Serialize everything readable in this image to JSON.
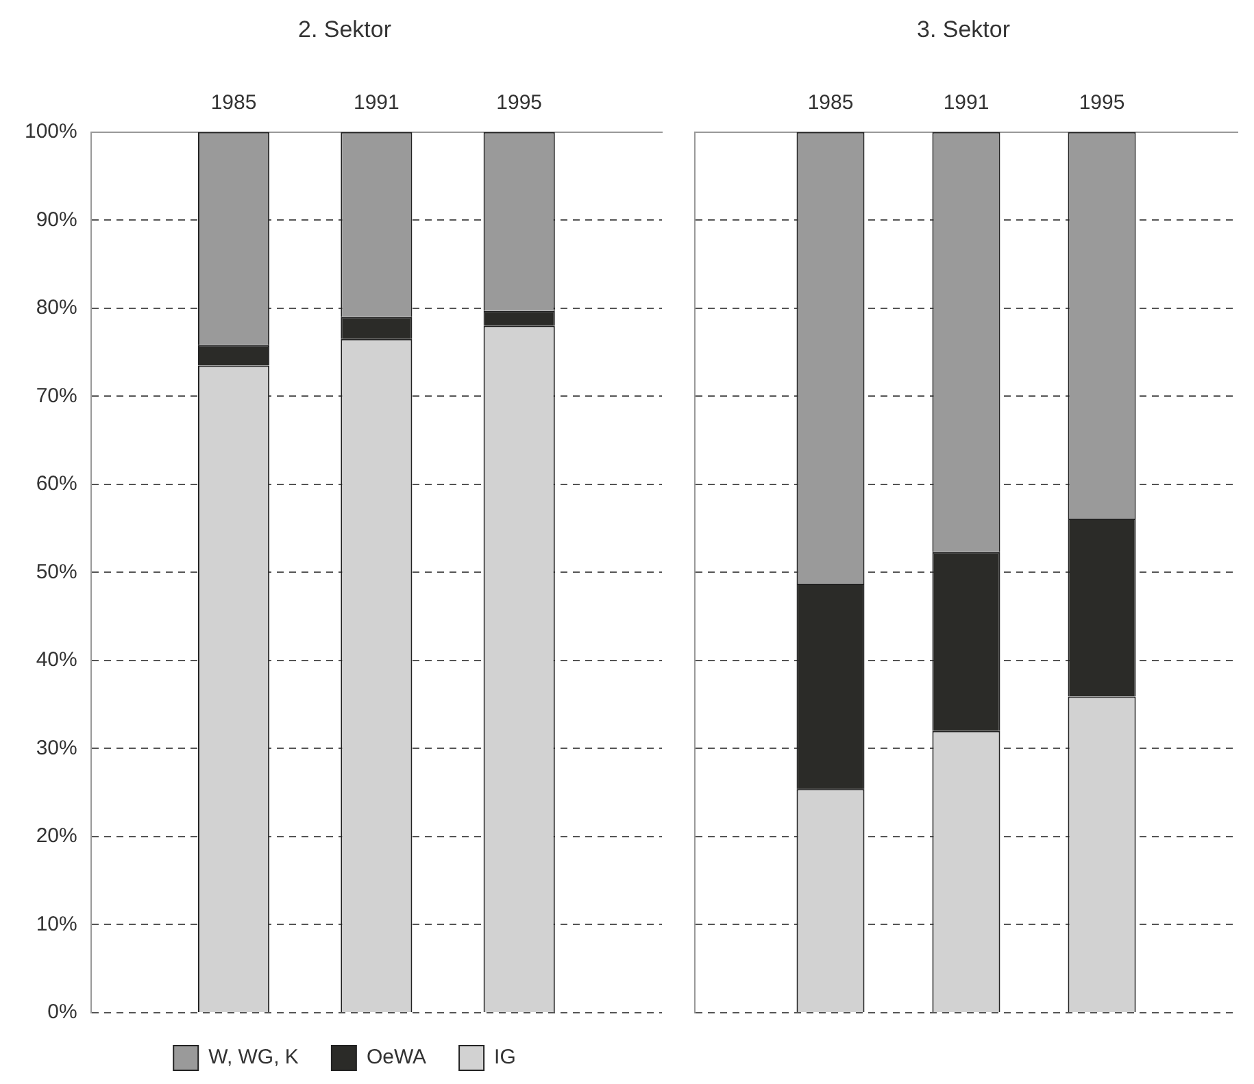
{
  "chart_data": [
    {
      "type": "bar",
      "stacked": true,
      "title": "2. Sektor",
      "categories": [
        null,
        "1985",
        "1991",
        "1995",
        null
      ],
      "series": [
        {
          "name": "IG",
          "color": "#d2d2d2",
          "values": [
            null,
            73.5,
            76.5,
            78,
            null
          ]
        },
        {
          "name": "OeWA",
          "color": "#2b2b28",
          "values": [
            null,
            2.3,
            2.5,
            1.7,
            null
          ]
        },
        {
          "name": "W, WG, K",
          "color": "#9a9a9a",
          "values": [
            null,
            24.2,
            21,
            20.3,
            null
          ]
        }
      ],
      "ylim": [
        0,
        100
      ],
      "yticks": [
        {
          "value": 0,
          "label": "0%"
        },
        {
          "value": 10,
          "label": "10%"
        },
        {
          "value": 20,
          "label": "20%"
        },
        {
          "value": 30,
          "label": "30%"
        },
        {
          "value": 40,
          "label": "40%"
        },
        {
          "value": 50,
          "label": "50%"
        },
        {
          "value": 60,
          "label": "60%"
        },
        {
          "value": 70,
          "label": "70%"
        },
        {
          "value": 80,
          "label": "80%"
        },
        {
          "value": 90,
          "label": "90%"
        },
        {
          "value": 100,
          "label": "100%"
        }
      ],
      "grid": "y",
      "legend": "bottom"
    },
    {
      "type": "bar",
      "stacked": true,
      "title": "3. Sektor",
      "categories": [
        null,
        "1985",
        "1991",
        "1995",
        null
      ],
      "series": [
        {
          "color": "#d2d2d2",
          "values": [
            null,
            25.4,
            32,
            35.9,
            null
          ]
        },
        {
          "color": "#2b2b28",
          "values": [
            null,
            23.3,
            20.3,
            20.2,
            null
          ]
        },
        {
          "color": "#9a9a9a",
          "values": [
            null,
            51.3,
            47.7,
            43.9,
            null
          ]
        }
      ],
      "ylim": [
        0,
        100
      ],
      "yticks": [
        {
          "value": 0,
          "label": null
        },
        {
          "value": 10,
          "label": null
        },
        {
          "value": 20,
          "label": null
        },
        {
          "value": 30,
          "label": null
        },
        {
          "value": 40,
          "label": null
        },
        {
          "value": 50,
          "label": null
        },
        {
          "value": 60,
          "label": null
        },
        {
          "value": 70,
          "label": null
        },
        {
          "value": 80,
          "label": null
        },
        {
          "value": 90,
          "label": null
        },
        {
          "value": 100,
          "label": null
        }
      ],
      "grid": "y",
      "tick_labels": "x",
      "legend": false
    }
  ]
}
